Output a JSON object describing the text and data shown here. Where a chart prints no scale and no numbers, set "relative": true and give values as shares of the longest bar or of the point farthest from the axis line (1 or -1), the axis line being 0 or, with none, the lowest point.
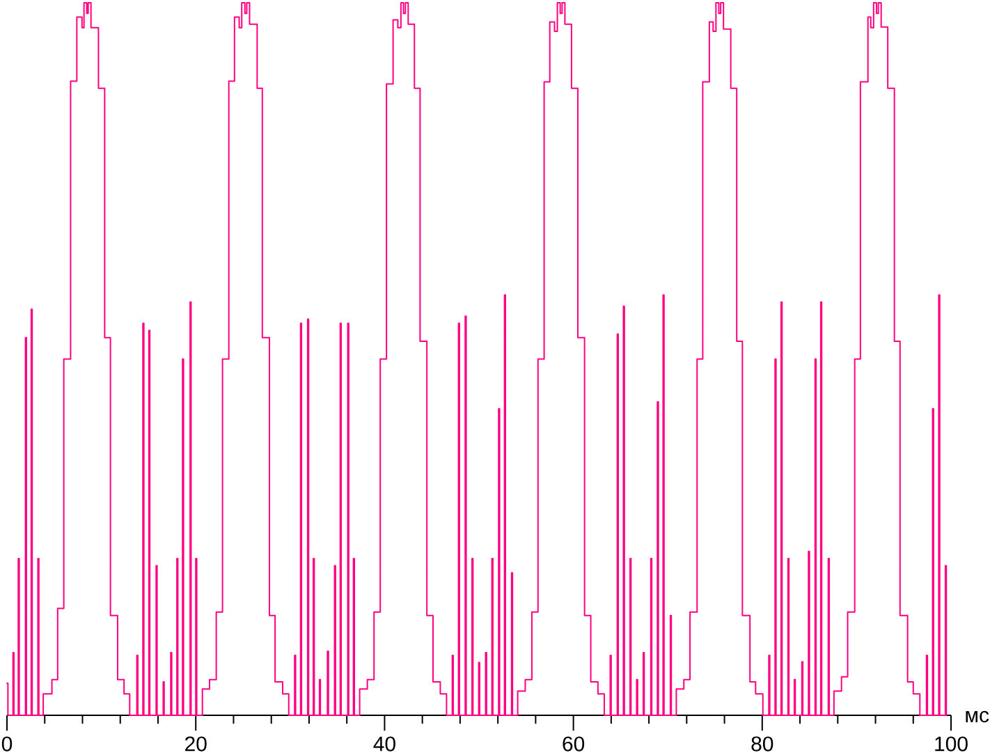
{
  "chart_data": {
    "type": "step",
    "relative": true,
    "color": "#ff0080",
    "xlabel": "мс",
    "xlim": [
      0,
      100
    ],
    "xticks": [
      0,
      {
        "value": 4,
        "label": null
      },
      {
        "value": 8,
        "label": null
      },
      {
        "value": 12,
        "label": null
      },
      {
        "value": 16,
        "label": null
      },
      20,
      {
        "value": 24,
        "label": null
      },
      {
        "value": 28,
        "label": null
      },
      {
        "value": 32,
        "label": null
      },
      {
        "value": 36,
        "label": null
      },
      40,
      {
        "value": 44,
        "label": null
      },
      {
        "value": 48,
        "label": null
      },
      {
        "value": 52,
        "label": null
      },
      {
        "value": 56,
        "label": null
      },
      60,
      {
        "value": 64,
        "label": null
      },
      {
        "value": 68,
        "label": null
      },
      {
        "value": 72,
        "label": null
      },
      {
        "value": 76,
        "label": null
      },
      80,
      {
        "value": 84,
        "label": null
      },
      {
        "value": 88,
        "label": null
      },
      {
        "value": 92,
        "label": null
      },
      {
        "value": 96,
        "label": null
      },
      100
    ],
    "x": [
      0,
      0.1,
      0.64,
      0.74,
      1.2,
      1.3,
      1.96,
      2.06,
      2.57,
      2.67,
      3.28,
      3.38,
      3.84,
      4.76,
      5.37,
      6.02,
      6.74,
      7.4,
      7.95,
      8.16,
      8.45,
      8.6,
      8.9,
      9.69,
      10.35,
      10.96,
      11.72,
      12.4,
      13,
      13.76,
      13.86,
      14.4,
      14.5,
      15.03,
      15.13,
      15.8,
      15.9,
      16.55,
      16.65,
      17.35,
      17.45,
      18,
      18.1,
      18.6,
      18.7,
      19.4,
      19.5,
      20,
      20.1,
      20.7,
      21.46,
      22.17,
      22.83,
      23.5,
      24.1,
      24.6,
      24.87,
      25.2,
      25.4,
      25.7,
      26.5,
      27.05,
      27.8,
      28.4,
      29.2,
      29.85,
      30.47,
      30.57,
      31.1,
      31.2,
      31.85,
      31.95,
      32.45,
      32.55,
      33.1,
      33.2,
      33.95,
      34.05,
      34.7,
      34.8,
      35.3,
      35.4,
      36.1,
      36.2,
      36.7,
      36.8,
      37.36,
      38.17,
      38.88,
      39.54,
      40.2,
      40.9,
      41.4,
      41.73,
      42,
      42.2,
      42.5,
      43.16,
      43.76,
      44.48,
      45.13,
      45.9,
      46.56,
      47.17,
      47.27,
      47.83,
      47.93,
      48.54,
      48.64,
      49.26,
      49.36,
      49.97,
      50.07,
      50.7,
      50.8,
      51.37,
      51.47,
      52.08,
      52.18,
      52.7,
      52.8,
      53.45,
      53.55,
      54.1,
      54.9,
      55.6,
      56.25,
      56.9,
      57.5,
      58,
      58.3,
      58.6,
      58.8,
      59.1,
      59.8,
      60.47,
      61.18,
      61.84,
      62.6,
      63.27,
      63.9,
      64,
      64.65,
      64.75,
      65.3,
      65.4,
      66,
      66.1,
      66.7,
      66.8,
      67.4,
      67.5,
      68.2,
      68.3,
      68.9,
      69,
      69.5,
      69.6,
      70.27,
      70.37,
      70.9,
      71.7,
      72.35,
      73.1,
      73.7,
      74.4,
      74.8,
      75.1,
      75.4,
      75.6,
      75.9,
      76.67,
      77.3,
      77.9,
      78.7,
      79.3,
      80.07,
      80.7,
      80.8,
      81.36,
      81.46,
      82,
      82.1,
      82.73,
      82.83,
      83.4,
      83.5,
      84.2,
      84.3,
      84.9,
      85,
      85.6,
      85.7,
      86.2,
      86.3,
      87,
      87.1,
      87.6,
      88.4,
      89.05,
      89.8,
      90.4,
      91.2,
      91.5,
      91.8,
      92.1,
      92.3,
      92.6,
      93.3,
      94,
      94.6,
      95.4,
      96,
      96.7,
      97.4,
      97.5,
      98.05,
      98.15,
      98.7,
      98.8,
      99.4,
      99.5
    ],
    "values": [
      0.045,
      0,
      0.088,
      0,
      0.22,
      0,
      0.53,
      0,
      0.57,
      0,
      0.22,
      0,
      0.03,
      0.05,
      0.15,
      0.5,
      0.89,
      0.98,
      0.965,
      1,
      0.985,
      1,
      0.965,
      0.88,
      0.53,
      0.14,
      0.05,
      0.03,
      0,
      0.084,
      0,
      0.55,
      0,
      0.54,
      0,
      0.21,
      0,
      0.047,
      0,
      0.088,
      0,
      0.22,
      0,
      0.5,
      0,
      0.58,
      0,
      0.22,
      0,
      0.037,
      0.05,
      0.145,
      0.5,
      0.89,
      0.98,
      0.965,
      1,
      0.985,
      1,
      0.97,
      0.88,
      0.53,
      0.14,
      0.047,
      0.03,
      0,
      0.084,
      0,
      0.55,
      0,
      0.556,
      0,
      0.22,
      0,
      0.05,
      0,
      0.09,
      0,
      0.21,
      0,
      0.55,
      0,
      0.55,
      0,
      0.22,
      0,
      0.037,
      0.05,
      0.145,
      0.5,
      0.886,
      0.976,
      0.965,
      1,
      0.985,
      1,
      0.97,
      0.88,
      0.525,
      0.14,
      0.047,
      0.03,
      0,
      0.084,
      0,
      0.55,
      0,
      0.56,
      0,
      0.22,
      0,
      0.074,
      0,
      0.088,
      0,
      0.22,
      0,
      0.43,
      0,
      0.59,
      0,
      0.2,
      0,
      0.034,
      0.05,
      0.145,
      0.5,
      0.889,
      0.973,
      0.96,
      1,
      0.985,
      1,
      0.97,
      0.88,
      0.53,
      0.14,
      0.047,
      0.03,
      0,
      0.084,
      0,
      0.535,
      0,
      0.574,
      0,
      0.22,
      0,
      0.05,
      0,
      0.088,
      0,
      0.22,
      0,
      0.44,
      0,
      0.59,
      0,
      0.14,
      0,
      0.037,
      0.05,
      0.145,
      0.5,
      0.889,
      0.973,
      0.96,
      1,
      0.985,
      1,
      0.963,
      0.88,
      0.525,
      0.14,
      0.047,
      0.03,
      0,
      0.084,
      0,
      0.5,
      0,
      0.58,
      0,
      0.22,
      0,
      0.05,
      0,
      0.075,
      0,
      0.23,
      0,
      0.5,
      0,
      0.58,
      0,
      0.22,
      0,
      0.034,
      0.054,
      0.145,
      0.5,
      0.889,
      0.98,
      0.965,
      1,
      0.985,
      1,
      0.966,
      0.88,
      0.525,
      0.14,
      0.047,
      0.03,
      0,
      0.084,
      0,
      0.43,
      0,
      0.59,
      0,
      0.21,
      0
    ]
  }
}
